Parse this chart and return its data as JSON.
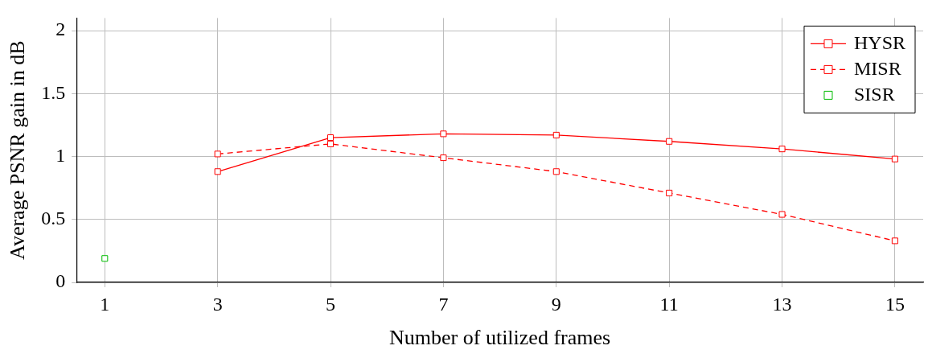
{
  "chart_data": {
    "type": "line",
    "xlabel": "Number of utilized frames",
    "ylabel": "Average PSNR gain in dB",
    "series": [
      {
        "name": "HYSR",
        "color": "#ff0000",
        "line_style": "solid",
        "x": [
          3,
          5,
          7,
          9,
          11,
          13,
          15
        ],
        "values": [
          0.88,
          1.15,
          1.18,
          1.17,
          1.12,
          1.06,
          0.98
        ]
      },
      {
        "name": "MISR",
        "color": "#ff0000",
        "line_style": "dashed",
        "x": [
          3,
          5,
          7,
          9,
          11,
          13,
          15
        ],
        "values": [
          1.02,
          1.1,
          0.99,
          0.88,
          0.71,
          0.54,
          0.33
        ]
      },
      {
        "name": "SISR",
        "type": "scatter",
        "color": "#00bb00",
        "x": [
          1
        ],
        "values": [
          0.19
        ]
      }
    ],
    "xlim": [
      0.5,
      15.5
    ],
    "xticks": [
      1,
      3,
      5,
      7,
      9,
      11,
      13,
      15
    ],
    "ylim": [
      0,
      2.1
    ],
    "yticks": [
      0,
      0.5,
      1,
      1.5,
      2
    ],
    "grid": true,
    "legend": "top right",
    "marker": "square"
  }
}
